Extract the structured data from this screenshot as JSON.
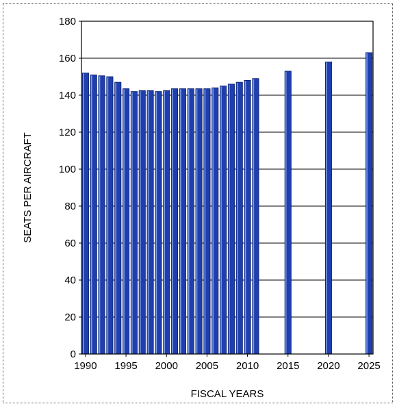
{
  "chart_data": {
    "type": "bar",
    "xlabel": "FISCAL YEARS",
    "ylabel": "SEATS PER AIRCRAFT",
    "ylim": [
      0,
      180
    ],
    "yticks": [
      0,
      20,
      40,
      60,
      80,
      100,
      120,
      140,
      160,
      180
    ],
    "xlim": [
      1990,
      2025
    ],
    "xticks": [
      1990,
      1995,
      2000,
      2005,
      2010,
      2015,
      2020,
      2025
    ],
    "grid": "horizontal",
    "bar_color": "#1f3fae",
    "x": [
      1990,
      1991,
      1992,
      1993,
      1994,
      1995,
      1996,
      1997,
      1998,
      1999,
      2000,
      2001,
      2002,
      2003,
      2004,
      2005,
      2006,
      2007,
      2008,
      2009,
      2010,
      2011,
      2015,
      2020,
      2025
    ],
    "values": [
      152,
      151,
      150.5,
      150,
      147,
      143.5,
      142,
      142.5,
      142.5,
      142,
      142.5,
      143.5,
      143.5,
      143.5,
      143.5,
      143.5,
      144,
      145,
      146,
      147,
      148,
      149,
      153,
      158,
      163
    ]
  }
}
